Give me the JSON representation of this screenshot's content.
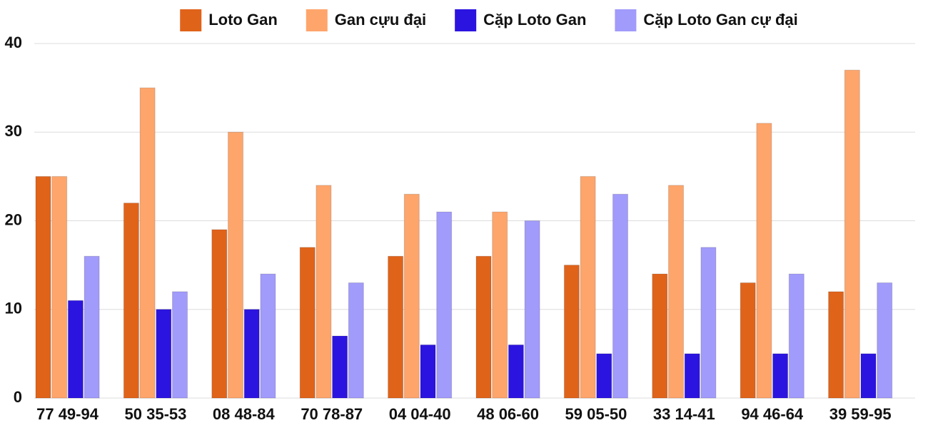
{
  "chart_data": {
    "type": "bar",
    "categories": [
      "77 49-94",
      "50 35-53",
      "08 48-84",
      "70 78-87",
      "04 04-40",
      "48 06-60",
      "59 05-50",
      "33 14-41",
      "94 46-64",
      "39 59-95"
    ],
    "series": [
      {
        "name": "Loto Gan",
        "color": "#e0631a",
        "values": [
          25,
          22,
          19,
          17,
          16,
          16,
          15,
          14,
          13,
          12
        ]
      },
      {
        "name": "Gan cựu đại",
        "color": "#fea56b",
        "values": [
          25,
          35,
          30,
          24,
          23,
          21,
          25,
          24,
          31,
          37
        ]
      },
      {
        "name": "Cặp Loto Gan",
        "color": "#2c14e0",
        "values": [
          11,
          10,
          10,
          7,
          6,
          6,
          5,
          5,
          5,
          5
        ]
      },
      {
        "name": "Cặp Loto Gan cự đại",
        "color": "#a19bfb",
        "values": [
          16,
          12,
          14,
          13,
          21,
          20,
          23,
          17,
          14,
          13
        ]
      }
    ],
    "ylim": [
      0,
      40
    ],
    "yticks": [
      0,
      10,
      20,
      30,
      40
    ],
    "grid": true,
    "legend": "top"
  }
}
